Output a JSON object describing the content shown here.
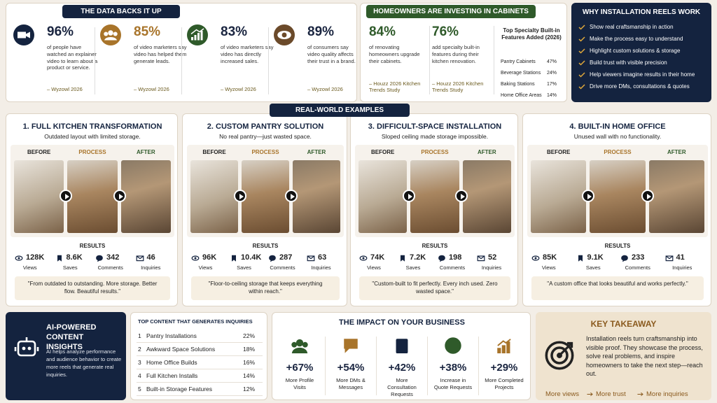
{
  "stats": {
    "title": "THE DATA BACKS IT UP",
    "items": [
      {
        "value": "96%",
        "text": "of people have watched an explainer video to learn about a product or service.",
        "source": "– Wyzowl 2026"
      },
      {
        "value": "85%",
        "text": "of video marketers say video has helped them generate leads.",
        "source": "– Wyzowl 2026"
      },
      {
        "value": "83%",
        "text": "of video marketers say video has directly increased sales.",
        "source": "– Wyzowl 2026"
      },
      {
        "value": "89%",
        "text": "of consumers say video quality affects their trust in a brand.",
        "source": "– Wyzowl 2026"
      }
    ]
  },
  "homeowners": {
    "title": "HOMEOWNERS ARE INVESTING IN CABINETS",
    "items": [
      {
        "value": "84%",
        "text": "of renovating homeowners upgrade their cabinets.",
        "source": "– Houzz 2026 Kitchen Trends Study"
      },
      {
        "value": "76%",
        "text": "add specialty built-in features during their kitchen renovation.",
        "source": "– Houzz 2026 Kitchen Trends Study"
      }
    ],
    "features": {
      "title": "Top Specialty Built-in Features Added (2026)",
      "rows": [
        {
          "name": "Pantry Cabinets",
          "value": "47%"
        },
        {
          "name": "Beverage Stations",
          "value": "24%"
        },
        {
          "name": "Baking Stations",
          "value": "17%"
        },
        {
          "name": "Home Office Areas",
          "value": "14%"
        }
      ]
    }
  },
  "why": {
    "title": "WHY INSTALLATION REELS WORK",
    "items": [
      "Show real craftsmanship in action",
      "Make the process easy to understand",
      "Highlight custom solutions & storage",
      "Build trust with visible precision",
      "Help viewers imagine results in their home",
      "Drive more DMs, consultations & quotes"
    ]
  },
  "examples": {
    "title": "REAL-WORLD EXAMPLES",
    "cards": [
      {
        "title": "1. FULL KITCHEN TRANSFORMATION",
        "subtitle": "Outdated layout with limited storage.",
        "stages": [
          "BEFORE",
          "PROCESS",
          "AFTER"
        ],
        "results_title": "RESULTS",
        "metrics": [
          {
            "value": "128K",
            "label": "Views"
          },
          {
            "value": "8.6K",
            "label": "Saves"
          },
          {
            "value": "342",
            "label": "Comments"
          },
          {
            "value": "46",
            "label": "Inquiries"
          }
        ],
        "quote": "\"From outdated to outstanding. More storage. Better flow. Beautiful results.\""
      },
      {
        "title": "2. CUSTOM PANTRY SOLUTION",
        "subtitle": "No real pantry—just wasted space.",
        "stages": [
          "BEFORE",
          "PROCESS",
          "AFTER"
        ],
        "results_title": "RESULTS",
        "metrics": [
          {
            "value": "96K",
            "label": "Views"
          },
          {
            "value": "10.4K",
            "label": "Saves"
          },
          {
            "value": "287",
            "label": "Comments"
          },
          {
            "value": "63",
            "label": "Inquiries"
          }
        ],
        "quote": "\"Floor-to-ceiling storage that keeps everything within reach.\""
      },
      {
        "title": "3. DIFFICULT-SPACE INSTALLATION",
        "subtitle": "Sloped ceiling made storage impossible.",
        "stages": [
          "BEFORE",
          "PROCESS",
          "AFTER"
        ],
        "results_title": "RESULTS",
        "metrics": [
          {
            "value": "74K",
            "label": "Views"
          },
          {
            "value": "7.2K",
            "label": "Saves"
          },
          {
            "value": "198",
            "label": "Comments"
          },
          {
            "value": "52",
            "label": "Inquiries"
          }
        ],
        "quote": "\"Custom-built to fit perfectly. Every inch used. Zero wasted space.\""
      },
      {
        "title": "4. BUILT-IN HOME OFFICE",
        "subtitle": "Unused wall with no functionality.",
        "stages": [
          "BEFORE",
          "PROCESS",
          "AFTER"
        ],
        "results_title": "RESULTS",
        "metrics": [
          {
            "value": "85K",
            "label": "Views"
          },
          {
            "value": "9.1K",
            "label": "Saves"
          },
          {
            "value": "233",
            "label": "Comments"
          },
          {
            "value": "41",
            "label": "Inquiries"
          }
        ],
        "quote": "\"A custom office that looks beautiful and works perfectly.\""
      }
    ]
  },
  "ai": {
    "title": "AI-POWERED CONTENT INSIGHTS",
    "text": "AI helps analyze performance and audience behavior to create more reels that generate real inquiries."
  },
  "top_content": {
    "title": "TOP CONTENT THAT GENERATES INQUIRIES",
    "rows": [
      {
        "rank": "1",
        "name": "Pantry Installations",
        "share": "22%"
      },
      {
        "rank": "2",
        "name": "Awkward Space Solutions",
        "share": "18%"
      },
      {
        "rank": "3",
        "name": "Home Office Builds",
        "share": "16%"
      },
      {
        "rank": "4",
        "name": "Full Kitchen Installs",
        "share": "14%"
      },
      {
        "rank": "5",
        "name": "Built-in Storage Features",
        "share": "12%"
      }
    ]
  },
  "impact": {
    "title": "THE IMPACT ON YOUR BUSINESS",
    "items": [
      {
        "value": "+67%",
        "label": "More Profile Visits"
      },
      {
        "value": "+54%",
        "label": "More DMs & Messages"
      },
      {
        "value": "+42%",
        "label": "More Consultation Requests"
      },
      {
        "value": "+38%",
        "label": "Increase in Quote Requests"
      },
      {
        "value": "+29%",
        "label": "More Completed Projects"
      }
    ]
  },
  "takeaway": {
    "title": "KEY TAKEAWAY",
    "text": "Installation reels turn craftsmanship into visible proof. They showcase the process, solve real problems, and inspire homeowners to take the next step—reach out.",
    "footer": [
      "More views",
      "More trust",
      "More inquiries"
    ]
  }
}
